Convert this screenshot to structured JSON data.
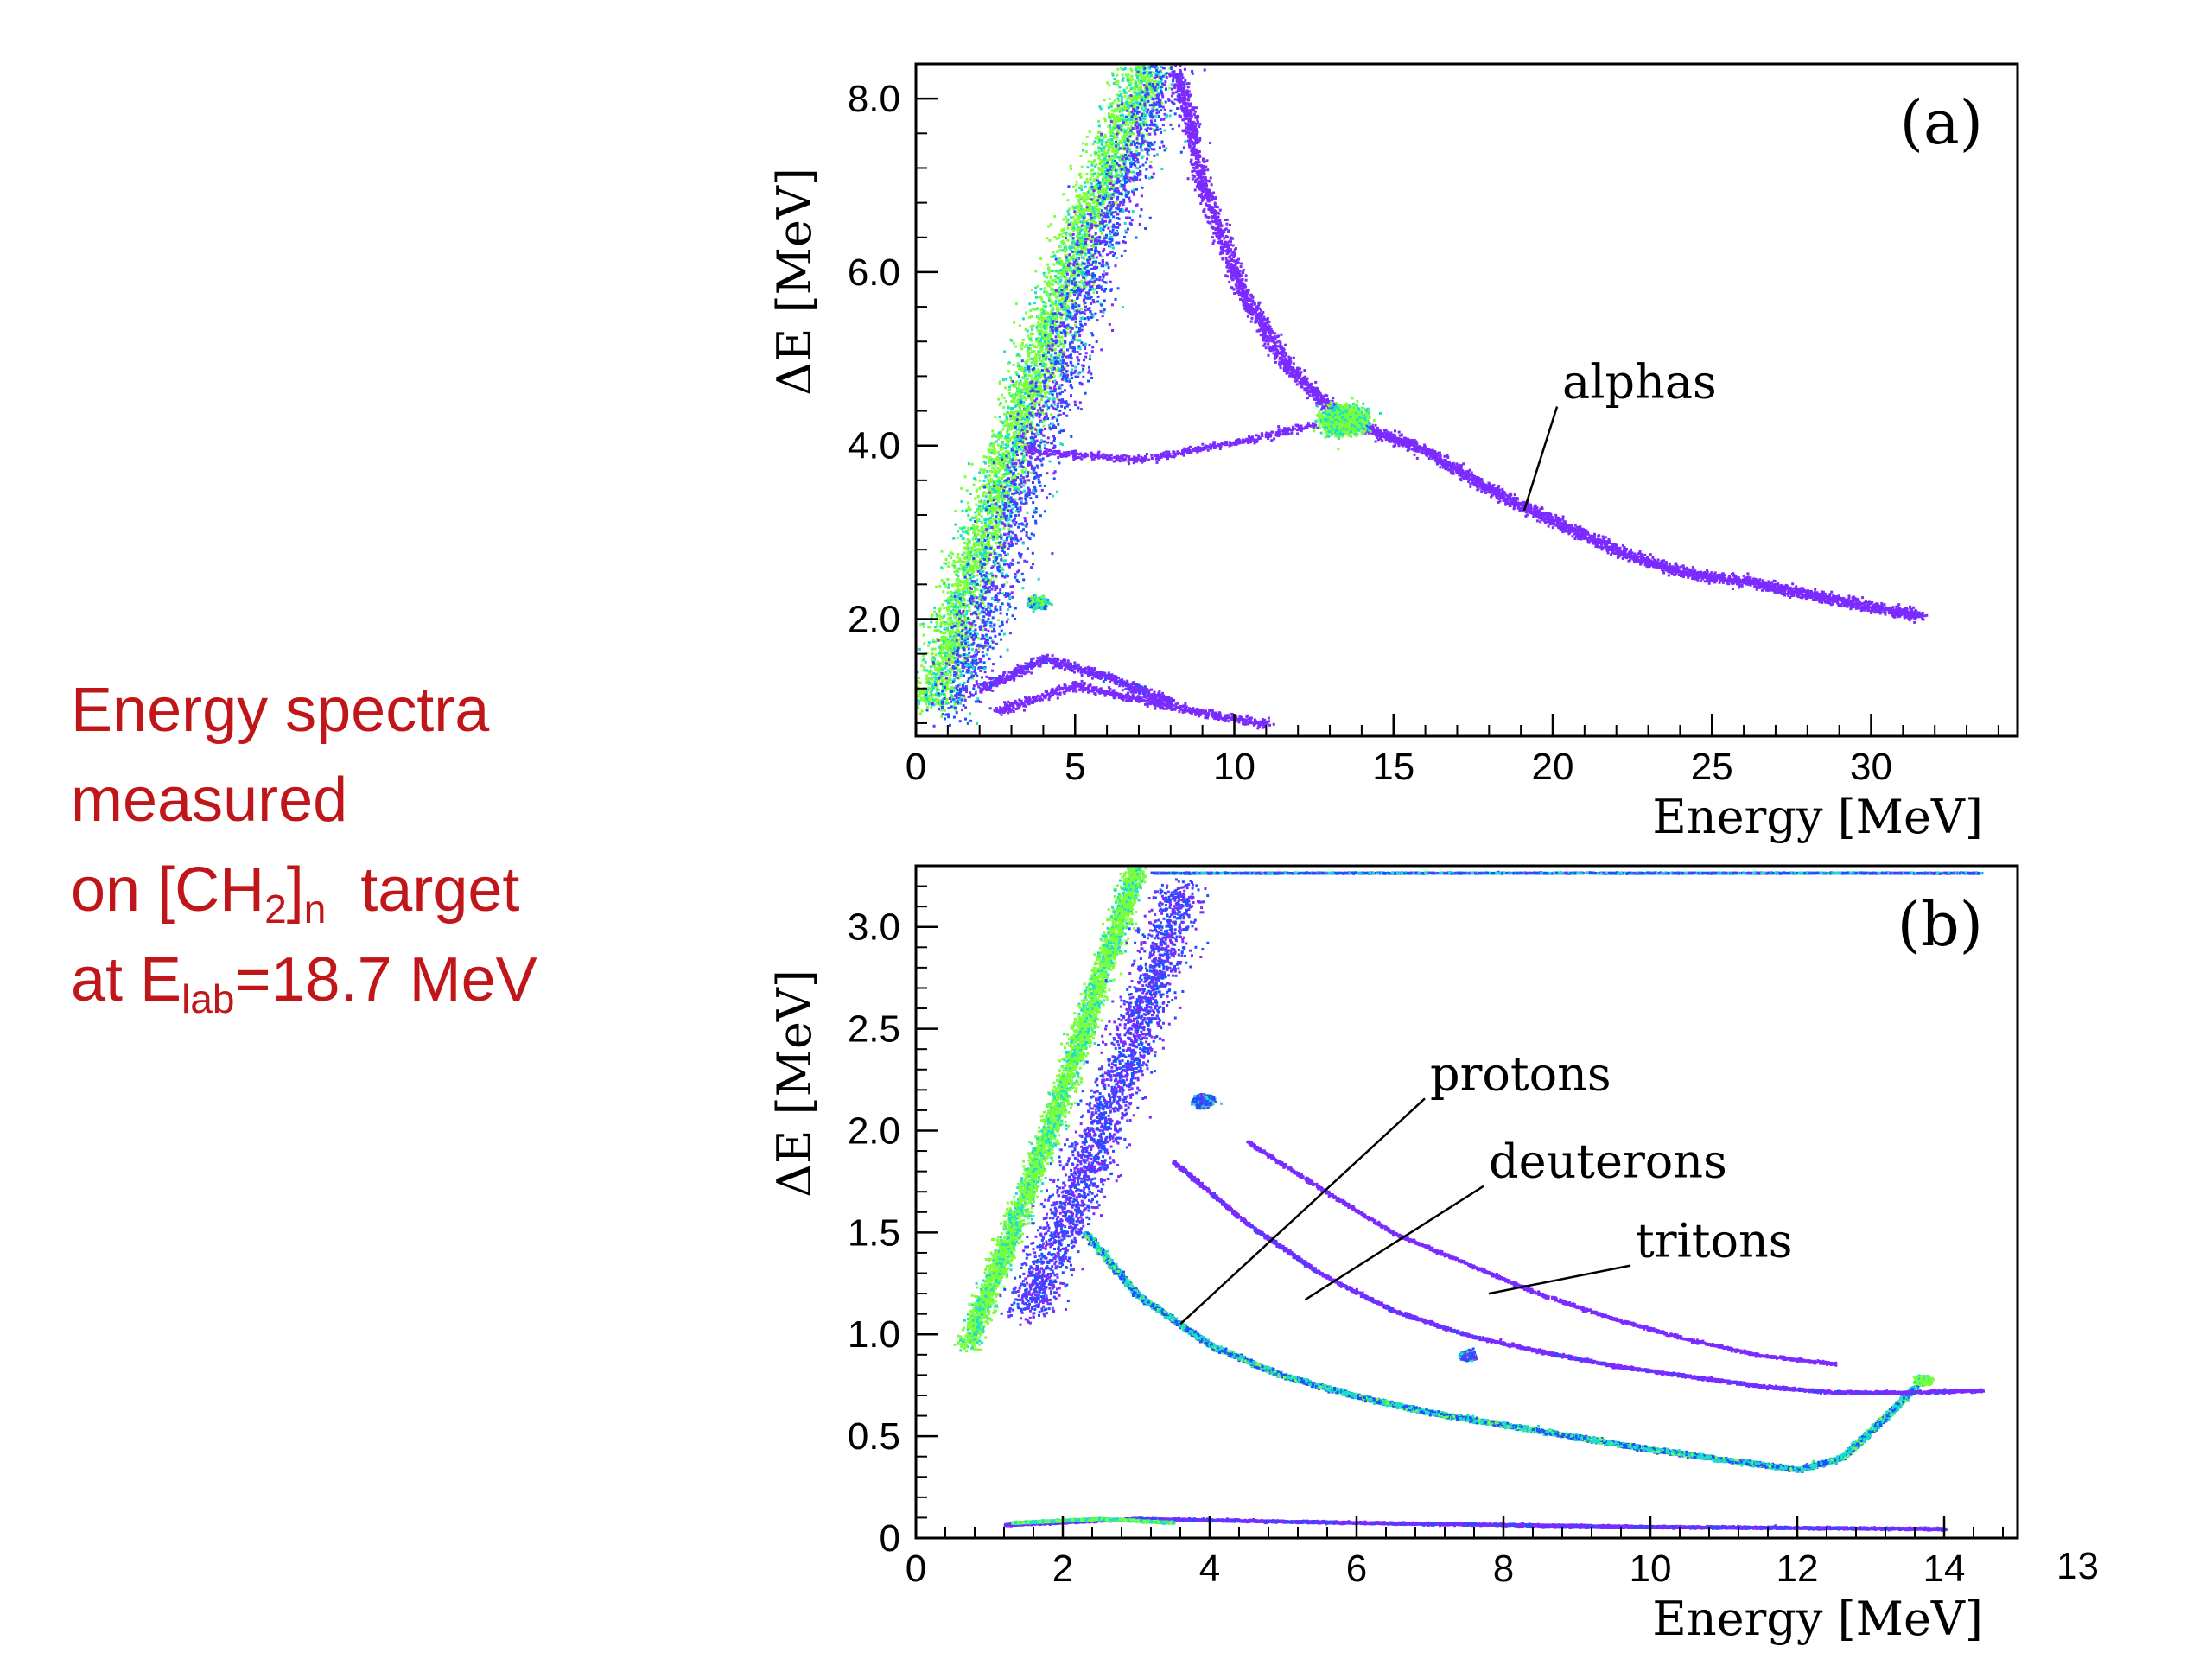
{
  "caption": {
    "line1": "Energy spectra",
    "line2": "measured",
    "line3_pre": "on [CH",
    "line3_sub1": "2",
    "line3_mid": "]",
    "line3_sub2": "n",
    "line3_post": "  target",
    "line4_pre": "at E",
    "line4_sub": "lab",
    "line4_post": "=18.7 MeV"
  },
  "page_number": "13",
  "colors": {
    "caption": "#c0161a",
    "scatter_low": "#7b2bff",
    "scatter_mid": "#1f4fff",
    "scatter_high": "#19e0c8",
    "scatter_peak": "#7cff3a"
  },
  "chart_data": [
    {
      "type": "scatter",
      "panel_label": "(a)",
      "xlabel": "Energy [MeV]",
      "ylabel": "ΔE [MeV]",
      "xlim": [
        0,
        34.6
      ],
      "ylim": [
        0.65,
        8.4
      ],
      "xticks": [
        0,
        5,
        10,
        15,
        20,
        25,
        30
      ],
      "xtick_labels": [
        "0",
        "5",
        "10",
        "15",
        "20",
        "25",
        "30"
      ],
      "yticks": [
        2.0,
        4.0,
        6.0,
        8.0
      ],
      "ytick_labels": [
        "2.0",
        "4.0",
        "6.0",
        "8.0"
      ],
      "annotations": [
        {
          "text": "alphas",
          "text_at": [
            20.3,
            4.55
          ],
          "point_to": [
            19.1,
            3.25
          ]
        }
      ],
      "features": [
        {
          "name": "punch-through band",
          "points": [
            [
              0.4,
              1.0
            ],
            [
              2.5,
              3.5
            ],
            [
              4.7,
              6.0
            ],
            [
              7.2,
              8.4
            ]
          ],
          "width": 0.45,
          "density": 5,
          "intensity": 0.95
        },
        {
          "name": "punch-through band 2",
          "points": [
            [
              1.2,
              0.95
            ],
            [
              3.4,
              3.6
            ],
            [
              5.7,
              6.3
            ],
            [
              7.9,
              8.4
            ]
          ],
          "width": 0.5,
          "density": 2.5,
          "intensity": 0.5
        },
        {
          "name": "alpha locus",
          "points": [
            [
              8.2,
              8.3
            ],
            [
              9.0,
              7.0
            ],
            [
              10.2,
              5.8
            ],
            [
              11.5,
              5.0
            ],
            [
              12.8,
              4.5
            ],
            [
              14.2,
              4.2
            ],
            [
              16.0,
              3.95
            ],
            [
              18.0,
              3.5
            ],
            [
              20.0,
              3.15
            ],
            [
              22.0,
              2.8
            ],
            [
              24.0,
              2.55
            ],
            [
              26.0,
              2.45
            ],
            [
              28.0,
              2.3
            ],
            [
              30.0,
              2.15
            ],
            [
              31.5,
              2.05
            ]
          ],
          "width": 0.15,
          "density": 2.5,
          "intensity": 0.25
        },
        {
          "name": "alpha spot",
          "points": [
            [
              13.4,
              4.3
            ]
          ],
          "width": 0.35,
          "density": 60,
          "intensity": 0.9
        },
        {
          "name": "horizontal band",
          "points": [
            [
              3.5,
              3.95
            ],
            [
              7.0,
              3.85
            ],
            [
              10.0,
              4.05
            ],
            [
              12.5,
              4.25
            ]
          ],
          "width": 0.1,
          "density": 1.2,
          "intensity": 0.2
        },
        {
          "name": "low curves",
          "points": [
            [
              2.0,
              1.2
            ],
            [
              4.0,
              1.55
            ],
            [
              6.0,
              1.35
            ],
            [
              8.0,
              1.05
            ]
          ],
          "width": 0.12,
          "density": 2,
          "intensity": 0.3
        },
        {
          "name": "low curves 2",
          "points": [
            [
              2.5,
              0.95
            ],
            [
              5.0,
              1.25
            ],
            [
              8.0,
              1.0
            ],
            [
              11.0,
              0.8
            ]
          ],
          "width": 0.12,
          "density": 1.6,
          "intensity": 0.25
        },
        {
          "name": "small spot",
          "points": [
            [
              3.8,
              2.2
            ]
          ],
          "width": 0.15,
          "density": 12,
          "intensity": 0.8
        }
      ]
    },
    {
      "type": "scatter",
      "panel_label": "(b)",
      "xlabel": "Energy [MeV]",
      "ylabel": "ΔE [MeV]",
      "xlim": [
        0,
        15.0
      ],
      "ylim": [
        0,
        3.3
      ],
      "xticks": [
        0,
        2,
        4,
        6,
        8,
        10,
        12,
        14
      ],
      "xtick_labels": [
        "0",
        "2",
        "4",
        "6",
        "8",
        "10",
        "12",
        "14"
      ],
      "yticks": [
        0,
        0.5,
        1.0,
        1.5,
        2.0,
        2.5,
        3.0
      ],
      "ytick_labels": [
        "0",
        "0.5",
        "1.0",
        "1.5",
        "2.0",
        "2.5",
        "3.0"
      ],
      "annotations": [
        {
          "text": "protons",
          "text_at": [
            7.0,
            2.2
          ],
          "point_to": [
            3.6,
            1.05
          ]
        },
        {
          "text": "deuterons",
          "text_at": [
            7.8,
            1.77
          ],
          "point_to": [
            5.3,
            1.17
          ]
        },
        {
          "text": "tritons",
          "text_at": [
            9.8,
            1.38
          ],
          "point_to": [
            7.8,
            1.2
          ]
        }
      ],
      "features": [
        {
          "name": "punch-through band",
          "points": [
            [
              0.7,
              0.95
            ],
            [
              1.8,
              2.0
            ],
            [
              3.0,
              3.3
            ]
          ],
          "width": 0.2,
          "density": 6,
          "intensity": 0.95
        },
        {
          "name": "diffuse region",
          "points": [
            [
              1.5,
              1.1
            ],
            [
              2.3,
              1.8
            ],
            [
              3.0,
              2.5
            ],
            [
              3.6,
              3.2
            ]
          ],
          "width": 0.45,
          "density": 4,
          "intensity": 0.45
        },
        {
          "name": "proton locus",
          "points": [
            [
              2.3,
              1.5
            ],
            [
              3.0,
              1.2
            ],
            [
              4.0,
              0.95
            ],
            [
              5.0,
              0.8
            ],
            [
              6.0,
              0.7
            ],
            [
              7.0,
              0.62
            ],
            [
              8.0,
              0.56
            ],
            [
              9.0,
              0.5
            ],
            [
              10.0,
              0.44
            ],
            [
              11.0,
              0.39
            ],
            [
              12.0,
              0.34
            ],
            [
              12.6,
              0.4
            ],
            [
              13.2,
              0.6
            ],
            [
              13.6,
              0.75
            ]
          ],
          "width": 0.06,
          "density": 5,
          "intensity": 0.7
        },
        {
          "name": "deuteron locus",
          "points": [
            [
              3.5,
              1.85
            ],
            [
              4.5,
              1.55
            ],
            [
              5.5,
              1.3
            ],
            [
              6.5,
              1.12
            ],
            [
              7.5,
              1.0
            ],
            [
              8.5,
              0.92
            ],
            [
              9.5,
              0.85
            ],
            [
              10.5,
              0.8
            ],
            [
              11.5,
              0.75
            ],
            [
              12.5,
              0.72
            ],
            [
              13.5,
              0.72
            ],
            [
              14.5,
              0.73
            ]
          ],
          "width": 0.04,
          "density": 2.2,
          "intensity": 0.3
        },
        {
          "name": "triton locus",
          "points": [
            [
              4.5,
              1.95
            ],
            [
              5.5,
              1.72
            ],
            [
              6.5,
              1.5
            ],
            [
              7.5,
              1.35
            ],
            [
              8.5,
              1.2
            ],
            [
              9.5,
              1.08
            ],
            [
              10.5,
              0.98
            ],
            [
              11.5,
              0.9
            ],
            [
              12.5,
              0.86
            ]
          ],
          "width": 0.04,
          "density": 1.5,
          "intensity": 0.2
        },
        {
          "name": "spot near 4 MeV",
          "points": [
            [
              3.9,
              2.15
            ]
          ],
          "width": 0.15,
          "density": 25,
          "intensity": 0.55
        },
        {
          "name": "spot near 7.5 MeV",
          "points": [
            [
              7.5,
              0.9
            ]
          ],
          "width": 0.1,
          "density": 25,
          "intensity": 0.55
        },
        {
          "name": "spot near 13.7 MeV",
          "points": [
            [
              13.7,
              0.78
            ]
          ],
          "width": 0.1,
          "density": 35,
          "intensity": 0.95
        },
        {
          "name": "baseline band",
          "points": [
            [
              1.2,
              0.07
            ],
            [
              3.0,
              0.1
            ],
            [
              6.0,
              0.08
            ],
            [
              10.0,
              0.06
            ],
            [
              14.0,
              0.05
            ]
          ],
          "width": 0.03,
          "density": 4,
          "intensity": 0.35
        },
        {
          "name": "baseline bright",
          "points": [
            [
              1.3,
              0.08
            ],
            [
              2.5,
              0.1
            ],
            [
              3.5,
              0.08
            ]
          ],
          "width": 0.025,
          "density": 6,
          "intensity": 0.85
        },
        {
          "name": "top band",
          "points": [
            [
              3.2,
              3.27
            ],
            [
              14.5,
              3.27
            ]
          ],
          "width": 0.015,
          "density": 3,
          "intensity": 0.6
        }
      ]
    }
  ]
}
